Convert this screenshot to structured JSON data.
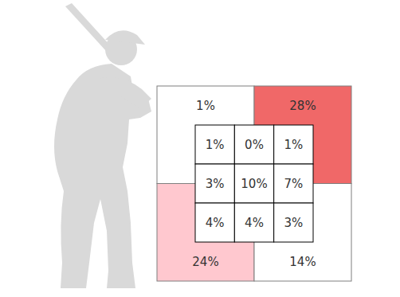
{
  "chart_data": {
    "type": "heatmap",
    "data_labels": true,
    "zones": {
      "values": [
        1,
        28,
        24,
        14
      ],
      "value_labels": [
        "1%",
        "28%",
        "24%",
        "14%"
      ],
      "colors": [
        "#ffffff",
        "#f06868",
        "#ffc8cf",
        "#ffffff"
      ]
    },
    "cells": {
      "values": [
        [
          1,
          0,
          1
        ],
        [
          3,
          10,
          7
        ],
        [
          4,
          4,
          3
        ]
      ],
      "value_labels": [
        [
          "1%",
          "0%",
          "1%"
        ],
        [
          "3%",
          "10%",
          "7%"
        ],
        [
          "4%",
          "4%",
          "3%"
        ]
      ],
      "colors": [
        [
          "#ffffff",
          "#ffffff",
          "#ffffff"
        ],
        [
          "#ffffff",
          "#ffffff",
          "#ffffff"
        ],
        [
          "#ffffff",
          "#ffffff",
          "#ffffff"
        ]
      ]
    }
  }
}
